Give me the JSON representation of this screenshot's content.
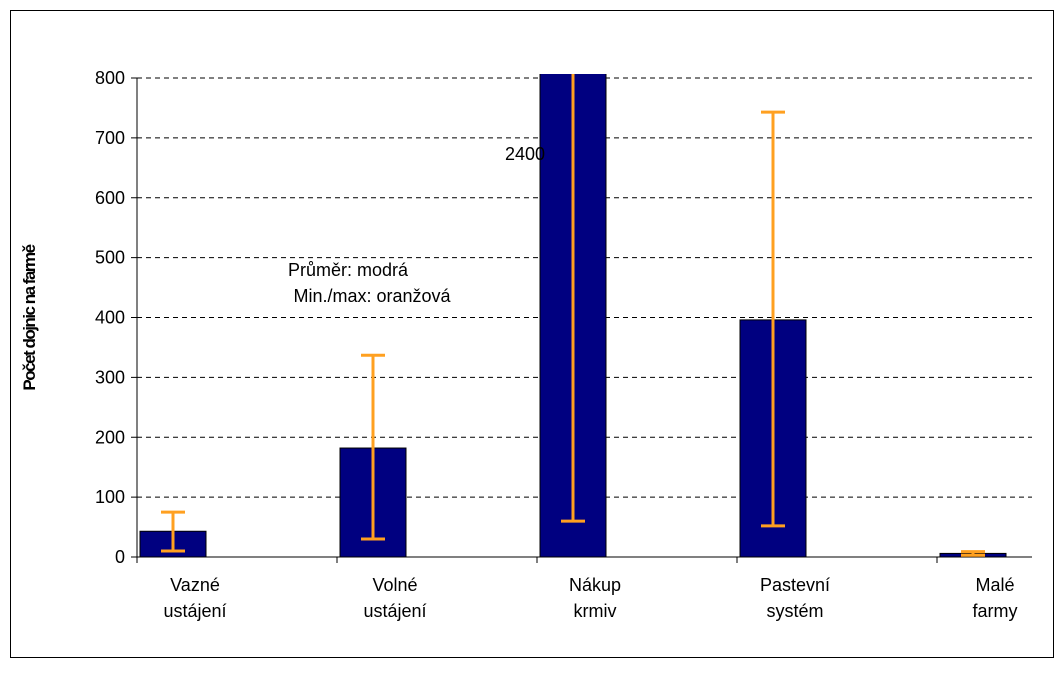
{
  "chart_data": {
    "type": "bar",
    "y_label": "Počet dojnic na farmě",
    "categories": [
      [
        "Vazné",
        "ustájení"
      ],
      [
        "Volné",
        "ustájení"
      ],
      [
        "Nákup",
        "krmiv"
      ],
      [
        "Pastevní",
        "systém"
      ],
      [
        "Malé",
        "farmy"
      ]
    ],
    "values": [
      43,
      182,
      810,
      396,
      6
    ],
    "min": [
      10,
      30,
      60,
      52,
      3
    ],
    "max": [
      75,
      337,
      2400,
      743,
      9
    ],
    "color": "#000080",
    "range_color": "#ffa020",
    "annotations": [
      "Průměr: modrá",
      "Min./max: oranžová"
    ],
    "ylim": [
      0,
      800
    ],
    "yticks": [
      0,
      100,
      200,
      300,
      400,
      500,
      600,
      700,
      800
    ],
    "grid": true
  }
}
